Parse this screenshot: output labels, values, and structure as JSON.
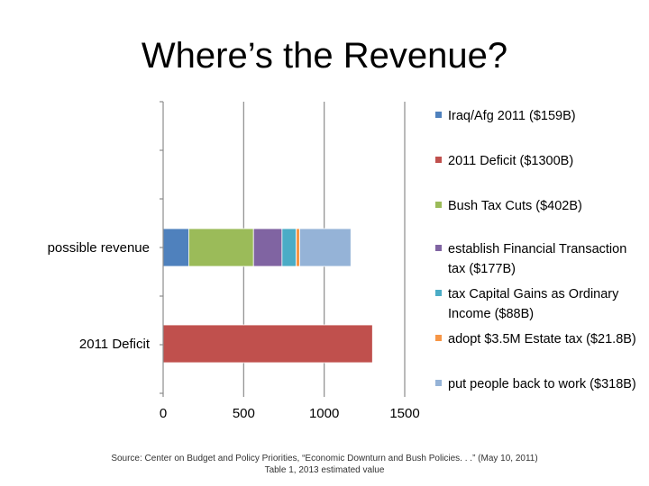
{
  "slide": {
    "title": "Where’s the Revenue?",
    "source": "Source: Center on Budget and Policy Priorities, “Economic Downturn and Bush Policies. . .” (May 10, 2011) Table 1, 2013 estimated value"
  },
  "chart_data": {
    "type": "bar",
    "orientation": "horizontal",
    "stacked": true,
    "categories": [
      "possible revenue",
      "2011 Deficit"
    ],
    "xlim": [
      0,
      1500
    ],
    "xticks": [
      "0",
      "500",
      "1000",
      "1500"
    ],
    "grid": true,
    "legend_position": "right",
    "series": [
      {
        "name": "Iraq/Afg 2011 ($159B)",
        "color": "#4F81BD",
        "values": [
          159,
          0
        ]
      },
      {
        "name": "2011 Deficit ($1300B)",
        "color": "#C0504D",
        "values": [
          0,
          1300
        ]
      },
      {
        "name": "Bush Tax Cuts ($402B)",
        "color": "#9BBB59",
        "values": [
          402,
          0
        ]
      },
      {
        "name": "establish Financial Transaction tax ($177B)",
        "color": "#8064A2",
        "values": [
          177,
          0
        ]
      },
      {
        "name": "tax Capital Gains as Ordinary Income ($88B)",
        "color": "#4BACC6",
        "values": [
          88,
          0
        ]
      },
      {
        "name": "adopt $3.5M Estate tax ($21.8B)",
        "color": "#F79646",
        "values": [
          21.8,
          0
        ]
      },
      {
        "name": "put people back to work ($318B)",
        "color": "#95B3D7",
        "values": [
          318,
          0
        ]
      }
    ]
  }
}
